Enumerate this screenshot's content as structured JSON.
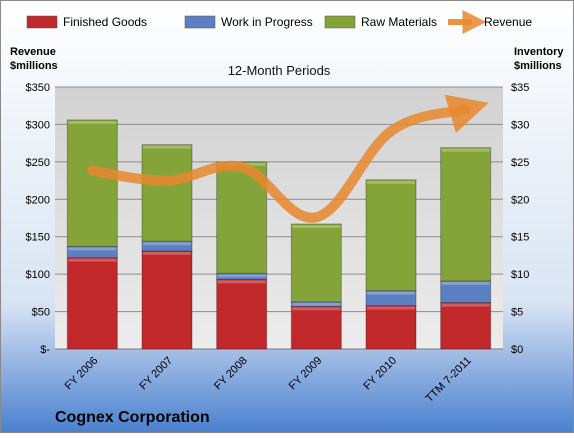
{
  "chart_data": {
    "type": "bar",
    "title": "12-Month Periods",
    "company": "Cognex Corporation",
    "left_axis_label": [
      "Revenue",
      "$millions"
    ],
    "right_axis_label": [
      "Inventory",
      "$millions"
    ],
    "categories": [
      "FY 2006",
      "FY 2007",
      "FY 2008",
      "FY 2009",
      "FY 2010",
      "TTM 7-2011"
    ],
    "left_ticks": [
      "$-",
      "$50",
      "$100",
      "$150",
      "$200",
      "$250",
      "$300",
      "$350"
    ],
    "right_ticks": [
      "$0",
      "$5",
      "$10",
      "$15",
      "$20",
      "$25",
      "$30",
      "$35"
    ],
    "left_ylim": [
      0,
      350
    ],
    "right_ylim": [
      0,
      35
    ],
    "series": [
      {
        "name": "Finished Goods",
        "axis": "right",
        "color": "#c0282b",
        "values": [
          12.2,
          13.1,
          9.3,
          5.7,
          5.8,
          6.2
        ]
      },
      {
        "name": "Work in Progress",
        "axis": "right",
        "color": "#5b7fc0",
        "values": [
          1.5,
          1.3,
          0.8,
          0.6,
          2.0,
          2.9
        ]
      },
      {
        "name": "Raw Materials",
        "axis": "right",
        "color": "#84a43a",
        "values": [
          16.9,
          12.9,
          14.9,
          10.4,
          14.8,
          17.8
        ]
      },
      {
        "name": "Revenue",
        "axis": "left",
        "type": "line",
        "color": "#e8882e",
        "values": [
          238,
          225,
          243,
          176,
          291,
          320
        ]
      }
    ],
    "grid": true,
    "legend_position": "top"
  }
}
